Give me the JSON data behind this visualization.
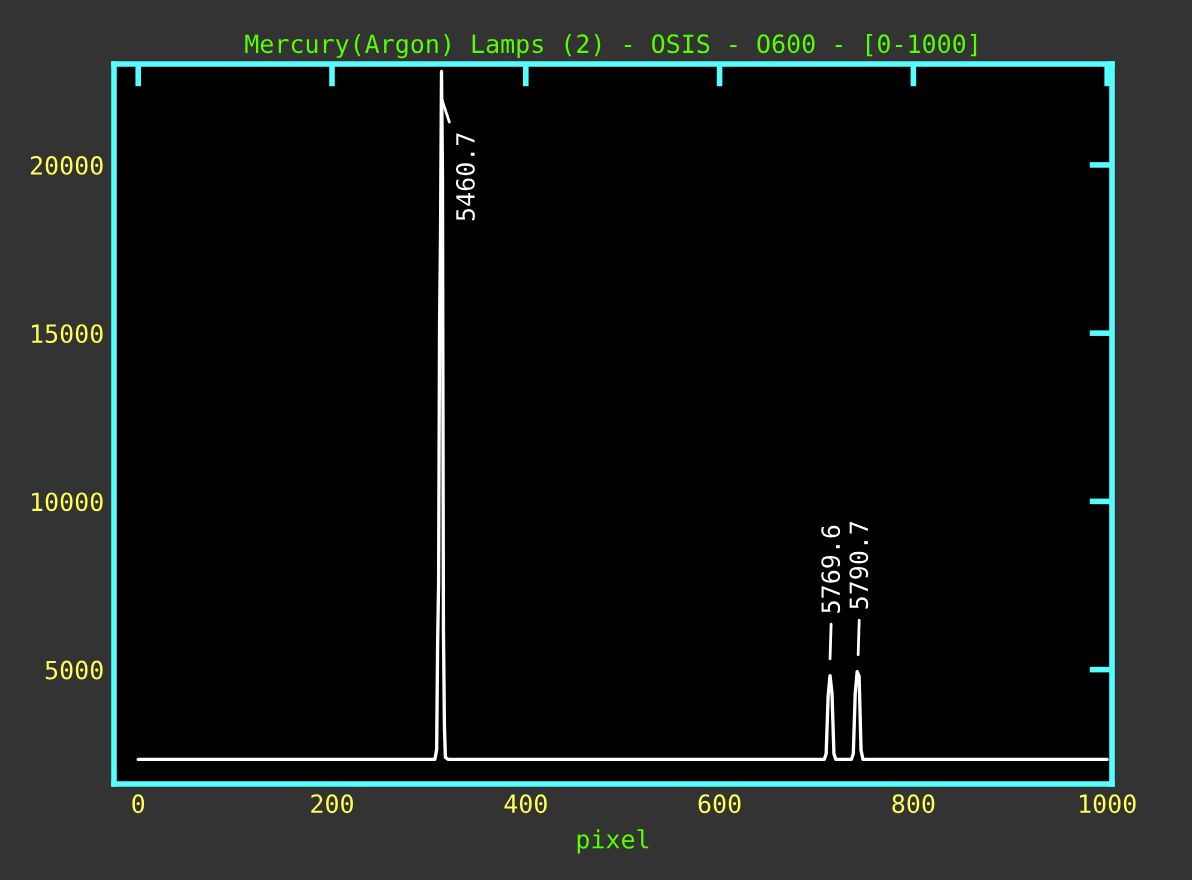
{
  "chart_data": {
    "type": "line",
    "title": "Mercury(Argon) Lamps (2) - OSIS - O600 - [0-1000]",
    "xlabel": "pixel",
    "x": [
      0,
      300,
      306,
      307,
      308,
      309,
      310,
      311,
      312,
      313,
      314,
      315,
      316,
      317,
      320,
      708,
      710,
      712,
      714,
      716,
      718,
      720,
      736,
      738,
      740,
      742,
      744,
      746,
      748,
      1000
    ],
    "series": [
      {
        "color": "#ffffff",
        "values": [
          2330,
          2330,
          2330,
          2450,
          2630,
          5770,
          7550,
          15250,
          17920,
          22780,
          19700,
          6190,
          3340,
          2390,
          2330,
          2330,
          2500,
          4200,
          4820,
          4300,
          2500,
          2330,
          2330,
          2500,
          4300,
          4940,
          4800,
          2600,
          2330,
          2330
        ]
      }
    ],
    "xlim": [
      -25,
      1005
    ],
    "ylim": [
      1600,
      23000
    ],
    "xticks": [
      0,
      200,
      400,
      600,
      800,
      1000
    ],
    "yticks": [
      5000,
      10000,
      15000,
      20000
    ],
    "annotations": [
      {
        "text": "5460.7",
        "x": 313,
        "y": 22780
      },
      {
        "text": "5769.6",
        "x": 714,
        "y": 4820
      },
      {
        "text": "5790.7",
        "x": 743,
        "y": 4940
      }
    ],
    "grid": false,
    "legend": false
  }
}
